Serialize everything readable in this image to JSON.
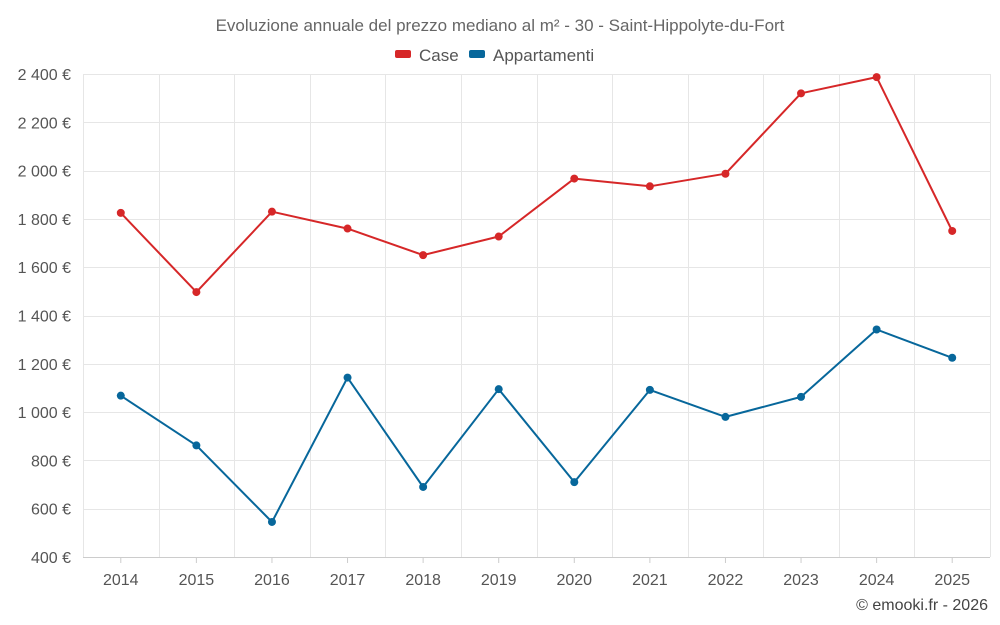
{
  "chart_data": {
    "type": "line",
    "title": "Evoluzione annuale del prezzo mediano al m² - 30 - Saint-Hippolyte-du-Fort",
    "categories": [
      "2014",
      "2015",
      "2016",
      "2017",
      "2018",
      "2019",
      "2020",
      "2021",
      "2022",
      "2023",
      "2024",
      "2025"
    ],
    "series": [
      {
        "name": "Case",
        "color": "#d62728",
        "values": [
          1825,
          1497,
          1830,
          1760,
          1650,
          1727,
          1967,
          1935,
          1987,
          2320,
          2387,
          1750
        ]
      },
      {
        "name": "Appartamenti",
        "color": "#07679b",
        "values": [
          1068,
          862,
          545,
          1143,
          690,
          1095,
          710,
          1092,
          980,
          1063,
          1342,
          1225
        ]
      }
    ],
    "ylim": [
      400,
      2400
    ],
    "yticks": [
      400,
      600,
      800,
      1000,
      1200,
      1400,
      1600,
      1800,
      2000,
      2200,
      2400
    ],
    "ytick_labels": [
      "400 €",
      "600 €",
      "800 €",
      "1 000 €",
      "1 200 €",
      "1 400 €",
      "1 600 €",
      "1 800 €",
      "2 000 €",
      "2 200 €",
      "2 400 €"
    ],
    "xlabel": "",
    "ylabel": "",
    "grid": true,
    "legend": "top-center"
  },
  "credit": "© emooki.fr - 2026"
}
